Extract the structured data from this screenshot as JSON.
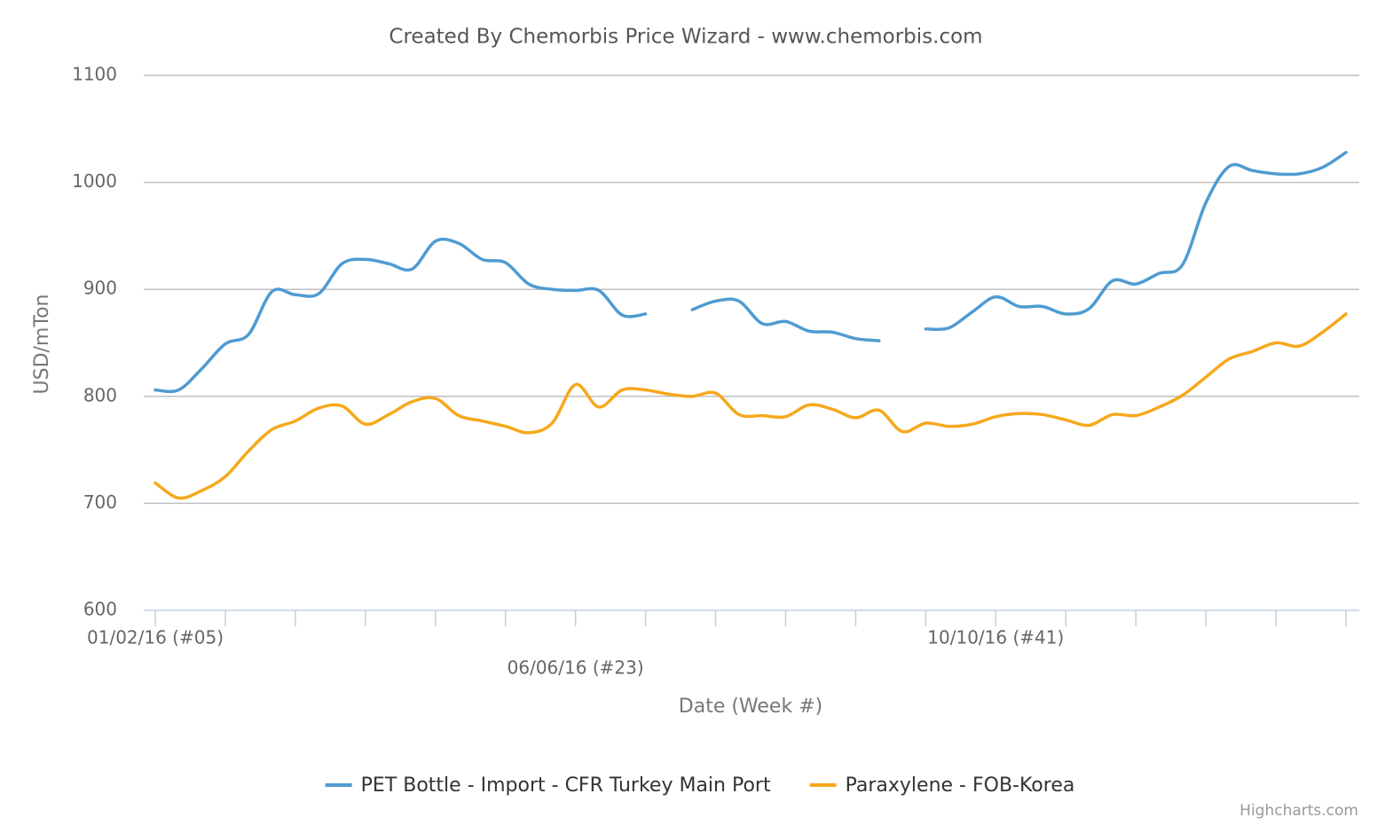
{
  "chart_data": {
    "type": "line",
    "title": "Created By Chemorbis Price Wizard - www.chemorbis.com",
    "y_label": "USD/mTon",
    "x_label": "Date (Week #)",
    "credits": "Highcharts.com",
    "categories": [
      "01/02/16 (#05)",
      null,
      null,
      null,
      null,
      null,
      null,
      null,
      null,
      null,
      null,
      null,
      null,
      null,
      null,
      null,
      null,
      null,
      "06/06/16 (#23)",
      null,
      null,
      null,
      null,
      null,
      null,
      null,
      null,
      null,
      null,
      null,
      null,
      null,
      null,
      null,
      null,
      null,
      "10/10/16 (#41)",
      null,
      null,
      null,
      null,
      null,
      null,
      null,
      null,
      null,
      null,
      null,
      null,
      null,
      null,
      null
    ],
    "series": [
      {
        "name": "PET Bottle - Import - CFR Turkey Main Port",
        "color": "#4f9bd2",
        "values": [
          806,
          806,
          826,
          849,
          858,
          898,
          895,
          896,
          924,
          928,
          924,
          919,
          945,
          943,
          928,
          925,
          905,
          900,
          899,
          899,
          876,
          877,
          null,
          881,
          889,
          889,
          868,
          870,
          861,
          860,
          854,
          852,
          null,
          863,
          864,
          879,
          893,
          884,
          884,
          877,
          882,
          908,
          905,
          915,
          923,
          981,
          1015,
          1011,
          1008,
          1008,
          1014,
          1028
        ]
      },
      {
        "name": "Paraxylene - FOB-Korea",
        "color": "#f6a81c",
        "values": [
          719,
          705,
          712,
          725,
          749,
          769,
          777,
          789,
          791,
          774,
          783,
          795,
          798,
          782,
          777,
          772,
          766,
          775,
          811,
          790,
          806,
          806,
          802,
          800,
          803,
          783,
          782,
          781,
          792,
          788,
          780,
          787,
          767,
          775,
          772,
          774,
          781,
          784,
          783,
          778,
          773,
          783,
          782,
          790,
          801,
          818,
          835,
          842,
          850,
          847,
          860,
          877
        ]
      }
    ],
    "ylim": [
      600,
      1100
    ],
    "yticks": [
      600,
      700,
      800,
      900,
      1000,
      1100
    ],
    "grid": true,
    "legend": "bottom"
  }
}
